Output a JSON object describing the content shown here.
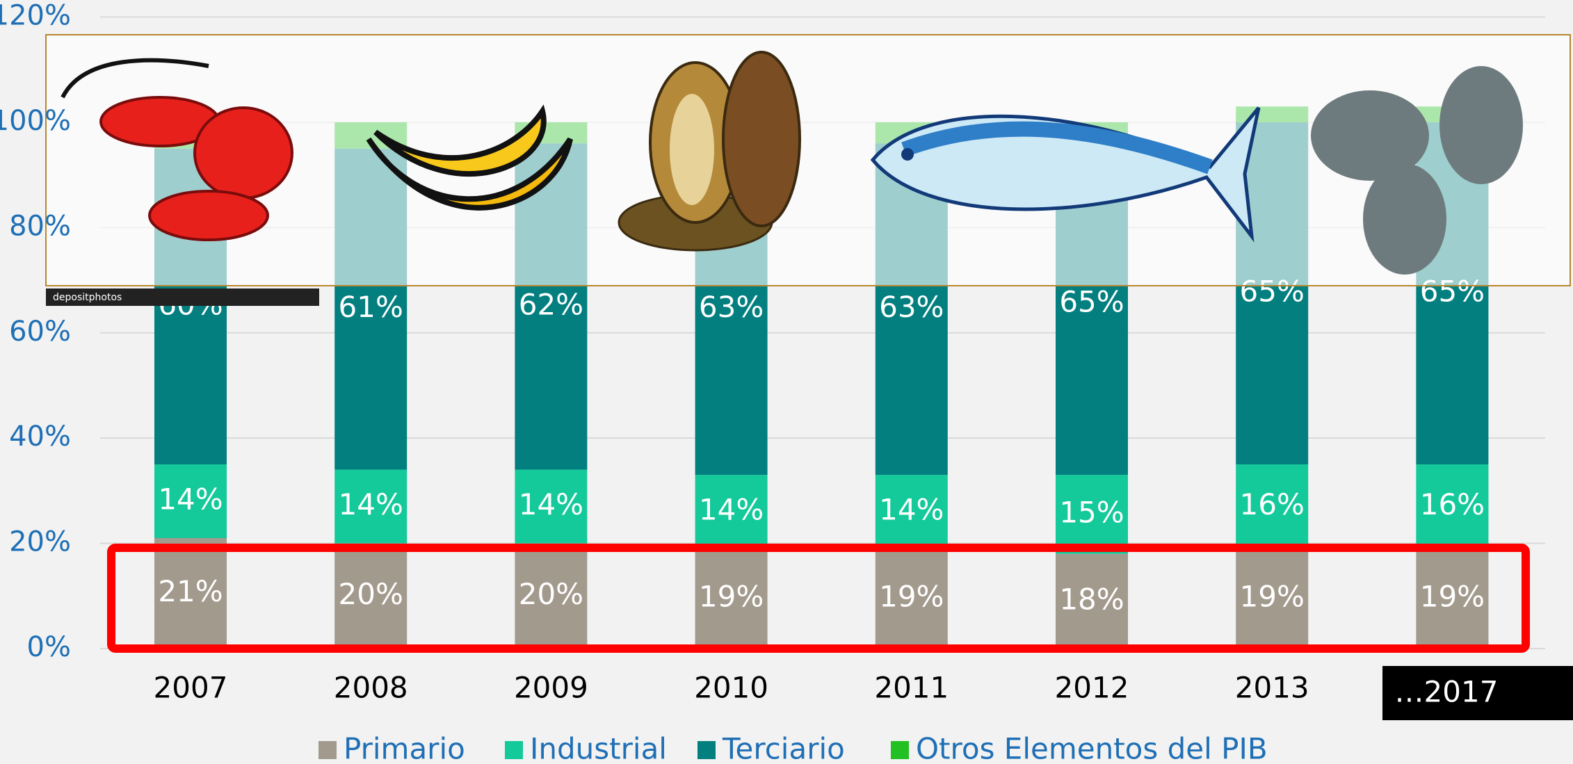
{
  "chart_data": {
    "type": "stacked_bar",
    "categories": [
      "2007",
      "2008",
      "2009",
      "2010",
      "2011",
      "2012",
      "2013",
      "…2017"
    ],
    "series": [
      {
        "name": "Primario",
        "color": "#a39a8e",
        "values": [
          21,
          20,
          20,
          19,
          19,
          18,
          19,
          19
        ],
        "value_labels": [
          "21%",
          "20%",
          "20%",
          "19%",
          "19%",
          "18%",
          "19%",
          "19%"
        ]
      },
      {
        "name": "Industrial",
        "color": "#14c99a",
        "values": [
          14,
          14,
          14,
          14,
          14,
          15,
          16,
          16
        ],
        "value_labels": [
          "14%",
          "14%",
          "14%",
          "14%",
          "14%",
          "15%",
          "16%",
          "16%"
        ]
      },
      {
        "name": "Terciario",
        "color": "#037f7f",
        "values": [
          60,
          61,
          62,
          63,
          63,
          65,
          65,
          65
        ],
        "value_labels": [
          "60%",
          "61%",
          "62%",
          "63%",
          "63%",
          "65%",
          "65%",
          "65%"
        ]
      },
      {
        "name": "Otros Elementos del PIB",
        "color": "#22c022",
        "values": [
          5,
          5,
          4,
          4,
          4,
          2,
          3,
          3
        ]
      }
    ],
    "ylim": [
      0,
      120
    ],
    "yticks": [
      {
        "value": 0,
        "label": "0%"
      },
      {
        "value": 20,
        "label": "20%"
      },
      {
        "value": 40,
        "label": "40%"
      },
      {
        "value": 60,
        "label": "60%"
      },
      {
        "value": 80,
        "label": "80%"
      },
      {
        "value": 100,
        "label": "100%"
      },
      {
        "value": 120,
        "label": "120%"
      }
    ],
    "grid": true,
    "legend": "bottom",
    "watermark": "depositphotos"
  }
}
